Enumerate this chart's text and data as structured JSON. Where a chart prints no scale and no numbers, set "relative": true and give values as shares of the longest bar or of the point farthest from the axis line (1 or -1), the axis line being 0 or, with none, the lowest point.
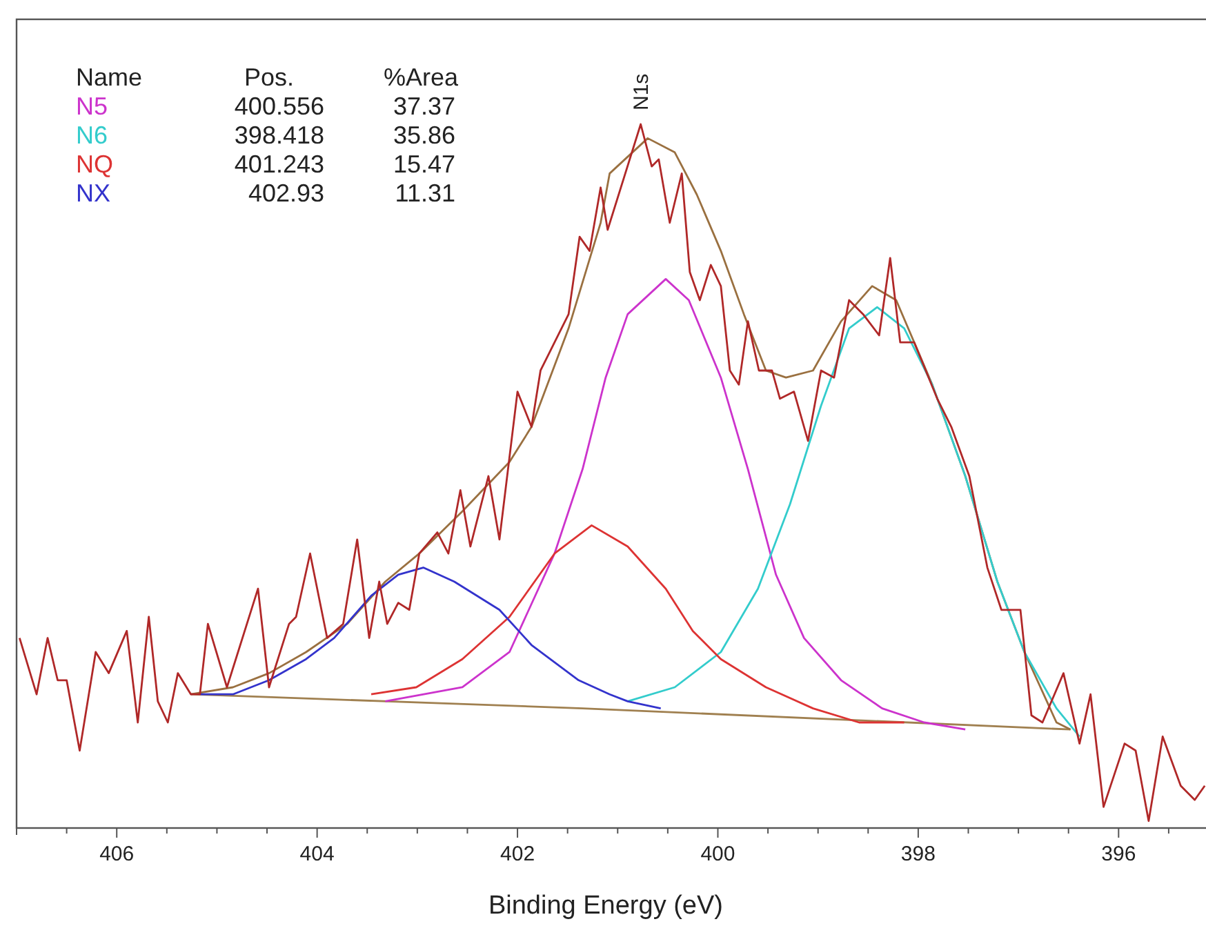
{
  "chart_data": {
    "type": "line",
    "xlabel": "Binding Energy (eV)",
    "relative": true,
    "legend": "top left",
    "marker": "none",
    "line_style": "solid",
    "xlim": [
      407,
      395.1
    ],
    "xticks": [
      {
        "value": 407,
        "label": null
      },
      {
        "value": 406.5,
        "label": null
      },
      406,
      {
        "value": 405.5,
        "label": null
      },
      {
        "value": 405,
        "label": null
      },
      {
        "value": 404.5,
        "label": null
      },
      404,
      {
        "value": 403.5,
        "label": null
      },
      {
        "value": 403,
        "label": null
      },
      {
        "value": 402.5,
        "label": null
      },
      402,
      {
        "value": 401.5,
        "label": null
      },
      {
        "value": 401,
        "label": null
      },
      {
        "value": 400.5,
        "label": null
      },
      400,
      {
        "value": 399.5,
        "label": null
      },
      {
        "value": 399,
        "label": null
      },
      {
        "value": 398.5,
        "label": null
      },
      398,
      {
        "value": 397.5,
        "label": null
      },
      {
        "value": 397,
        "label": null
      },
      {
        "value": 396.5,
        "label": null
      },
      396,
      {
        "value": 395.5,
        "label": null
      }
    ],
    "annotations": [
      "Name",
      "Pos.",
      "%Area",
      "400.556",
      "37.37",
      "398.418",
      "35.86",
      "401.243",
      "15.47",
      "402.93",
      "11.31",
      {
        "text": "N1s",
        "x": 400.77,
        "y": 1.0
      }
    ],
    "series": [
      {
        "color": "#a08050",
        "x": [
          405.26,
          401.35,
          396.48
        ],
        "values": [
          0.19,
          0.17,
          0.14
        ]
      },
      {
        "color": "#9a7040",
        "x": [
          405.26,
          404.84,
          404.48,
          404.11,
          403.7,
          403.32,
          402.98,
          402.55,
          402.08,
          401.86,
          401.49,
          401.17,
          401.08,
          400.7,
          400.43,
          400.21,
          399.97,
          399.74,
          399.52,
          399.32,
          399.05,
          398.77,
          398.46,
          398.22,
          397.86,
          397.53,
          397.21,
          396.94,
          396.62,
          396.48
        ],
        "values": [
          0.19,
          0.2,
          0.22,
          0.25,
          0.29,
          0.35,
          0.39,
          0.45,
          0.52,
          0.57,
          0.71,
          0.86,
          0.93,
          0.98,
          0.96,
          0.9,
          0.82,
          0.73,
          0.65,
          0.64,
          0.65,
          0.72,
          0.77,
          0.75,
          0.63,
          0.5,
          0.35,
          0.25,
          0.15,
          0.14
        ]
      },
      {
        "name": "N5",
        "color": "#cc33cc",
        "x": [
          403.32,
          402.55,
          402.08,
          401.63,
          401.35,
          401.12,
          400.9,
          400.52,
          400.29,
          399.97,
          399.7,
          399.42,
          399.14,
          398.77,
          398.36,
          397.94,
          397.53
        ],
        "values": [
          0.18,
          0.2,
          0.25,
          0.39,
          0.51,
          0.64,
          0.73,
          0.78,
          0.75,
          0.64,
          0.51,
          0.36,
          0.27,
          0.21,
          0.17,
          0.15,
          0.14
        ]
      },
      {
        "name": "N6",
        "color": "#33cccc",
        "x": [
          400.9,
          400.43,
          399.97,
          399.6,
          399.28,
          398.97,
          398.69,
          398.41,
          398.14,
          397.86,
          397.53,
          397.21,
          396.94,
          396.62,
          396.39
        ],
        "values": [
          0.18,
          0.2,
          0.25,
          0.34,
          0.46,
          0.6,
          0.71,
          0.74,
          0.71,
          0.63,
          0.5,
          0.35,
          0.25,
          0.17,
          0.13
        ]
      },
      {
        "name": "NQ",
        "color": "#dd3333",
        "x": [
          403.46,
          403.01,
          402.55,
          402.08,
          401.63,
          401.26,
          400.9,
          400.52,
          400.25,
          399.97,
          399.52,
          399.05,
          398.59,
          398.14
        ],
        "values": [
          0.19,
          0.2,
          0.24,
          0.3,
          0.39,
          0.43,
          0.4,
          0.34,
          0.28,
          0.24,
          0.2,
          0.17,
          0.15,
          0.15
        ]
      },
      {
        "name": "NX",
        "color": "#3333cc",
        "x": [
          405.17,
          404.84,
          404.48,
          404.11,
          403.83,
          403.46,
          403.19,
          402.94,
          402.63,
          402.18,
          401.86,
          401.39,
          401.08,
          400.9,
          400.57
        ],
        "values": [
          0.19,
          0.19,
          0.21,
          0.24,
          0.27,
          0.33,
          0.36,
          0.37,
          0.35,
          0.31,
          0.26,
          0.21,
          0.19,
          0.18,
          0.17
        ]
      },
      {
        "color": "#b02828",
        "x": [
          406.97,
          406.8,
          406.69,
          406.59,
          406.5,
          406.37,
          406.21,
          406.08,
          405.9,
          405.79,
          405.68,
          405.59,
          405.49,
          405.39,
          405.26,
          405.17,
          405.09,
          404.9,
          404.59,
          404.48,
          404.28,
          404.21,
          404.07,
          403.9,
          403.74,
          403.6,
          403.48,
          403.38,
          403.3,
          403.19,
          403.08,
          402.98,
          402.8,
          402.69,
          402.57,
          402.47,
          402.29,
          402.18,
          402.0,
          401.86,
          401.77,
          401.63,
          401.49,
          401.38,
          401.28,
          401.17,
          401.1,
          400.77,
          400.66,
          400.59,
          400.48,
          400.36,
          400.28,
          400.18,
          400.07,
          399.97,
          399.88,
          399.79,
          399.7,
          399.59,
          399.46,
          399.38,
          399.24,
          399.1,
          398.97,
          398.84,
          398.69,
          398.55,
          398.39,
          398.28,
          398.18,
          398.04,
          397.81,
          397.67,
          397.49,
          397.31,
          397.17,
          396.98,
          396.87,
          396.76,
          396.55,
          396.39,
          396.28,
          396.15,
          395.94,
          395.83,
          395.7,
          395.56,
          395.38,
          395.24,
          395.14
        ],
        "values": [
          0.27,
          0.19,
          0.27,
          0.21,
          0.21,
          0.11,
          0.25,
          0.22,
          0.28,
          0.15,
          0.3,
          0.18,
          0.15,
          0.22,
          0.19,
          0.19,
          0.29,
          0.2,
          0.34,
          0.2,
          0.29,
          0.3,
          0.39,
          0.27,
          0.29,
          0.41,
          0.27,
          0.35,
          0.29,
          0.32,
          0.31,
          0.39,
          0.42,
          0.39,
          0.48,
          0.4,
          0.5,
          0.41,
          0.62,
          0.57,
          0.65,
          0.69,
          0.73,
          0.84,
          0.82,
          0.91,
          0.85,
          1.0,
          0.94,
          0.95,
          0.86,
          0.93,
          0.79,
          0.75,
          0.8,
          0.77,
          0.65,
          0.63,
          0.72,
          0.65,
          0.65,
          0.61,
          0.62,
          0.55,
          0.65,
          0.64,
          0.75,
          0.73,
          0.7,
          0.81,
          0.69,
          0.69,
          0.61,
          0.57,
          0.5,
          0.37,
          0.31,
          0.31,
          0.16,
          0.15,
          0.22,
          0.12,
          0.19,
          0.03,
          0.12,
          0.11,
          0.01,
          0.13,
          0.06,
          0.04,
          0.06
        ]
      }
    ]
  }
}
